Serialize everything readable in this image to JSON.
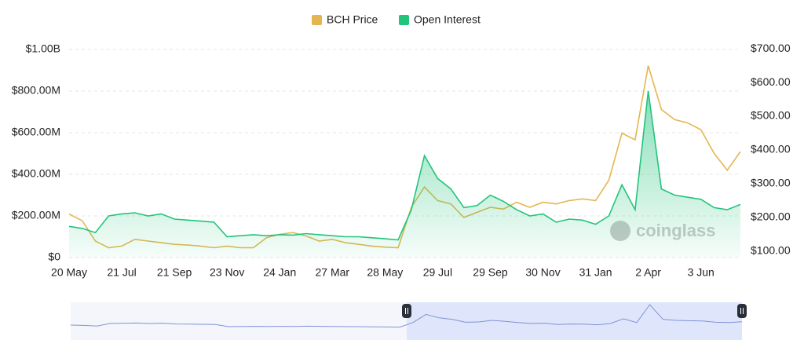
{
  "chart_data": {
    "type": "line",
    "legend": "top",
    "watermark": "coinglass",
    "grid": true,
    "categories": [
      "20 May",
      null,
      null,
      null,
      "21 Jul",
      null,
      null,
      null,
      "21 Sep",
      null,
      null,
      null,
      "23 Nov",
      null,
      null,
      null,
      "24 Jan",
      null,
      null,
      null,
      "27 Mar",
      null,
      null,
      null,
      "28 May",
      null,
      null,
      null,
      "29 Jul",
      null,
      null,
      null,
      "29 Sep",
      null,
      null,
      null,
      "30 Nov",
      null,
      null,
      null,
      "31 Jan",
      null,
      null,
      null,
      "2 Apr",
      null,
      null,
      null,
      "3 Jun",
      null,
      null,
      null
    ],
    "ylim": [
      0,
      1000000000
    ],
    "yticks": [
      {
        "value": 0,
        "label": "$0"
      },
      {
        "value": 200000000,
        "label": "$200.00M"
      },
      {
        "value": 400000000,
        "label": "$400.00M"
      },
      {
        "value": 600000000,
        "label": "$600.00M"
      },
      {
        "value": 800000000,
        "label": "$800.00M"
      },
      {
        "value": 1000000000,
        "label": "$1.00B"
      }
    ],
    "y2lim": [
      81,
      698
    ],
    "y2ticks": [
      {
        "value": 100,
        "label": "$100.00"
      },
      {
        "value": 200,
        "label": "$200.00"
      },
      {
        "value": 300,
        "label": "$300.00"
      },
      {
        "value": 400,
        "label": "$400.00"
      },
      {
        "value": 500,
        "label": "$500.00"
      },
      {
        "value": 600,
        "label": "$600.00"
      },
      {
        "value": 700,
        "label": "$700.00"
      }
    ],
    "series": [
      {
        "name": "BCH Price",
        "color": "#e5b64f",
        "axis": "y2",
        "values": [
          210,
          190,
          130,
          110,
          115,
          135,
          130,
          125,
          120,
          118,
          115,
          110,
          115,
          110,
          110,
          140,
          150,
          155,
          145,
          130,
          135,
          125,
          120,
          115,
          112,
          110,
          230,
          290,
          250,
          240,
          200,
          215,
          230,
          225,
          245,
          230,
          245,
          240,
          250,
          255,
          250,
          310,
          450,
          430,
          650,
          520,
          490,
          480,
          460,
          390,
          340,
          395
        ]
      },
      {
        "name": "Open Interest",
        "color": "#22c47c",
        "values": [
          150000000,
          140000000,
          120000000,
          200000000,
          210000000,
          215000000,
          200000000,
          210000000,
          185000000,
          180000000,
          175000000,
          170000000,
          100000000,
          105000000,
          110000000,
          105000000,
          110000000,
          108000000,
          115000000,
          110000000,
          105000000,
          100000000,
          100000000,
          95000000,
          90000000,
          85000000,
          230000000,
          490000000,
          380000000,
          330000000,
          240000000,
          250000000,
          300000000,
          270000000,
          230000000,
          200000000,
          210000000,
          170000000,
          185000000,
          180000000,
          160000000,
          200000000,
          350000000,
          230000000,
          800000000,
          330000000,
          300000000,
          290000000,
          280000000,
          240000000,
          230000000,
          255000000
        ]
      }
    ]
  }
}
